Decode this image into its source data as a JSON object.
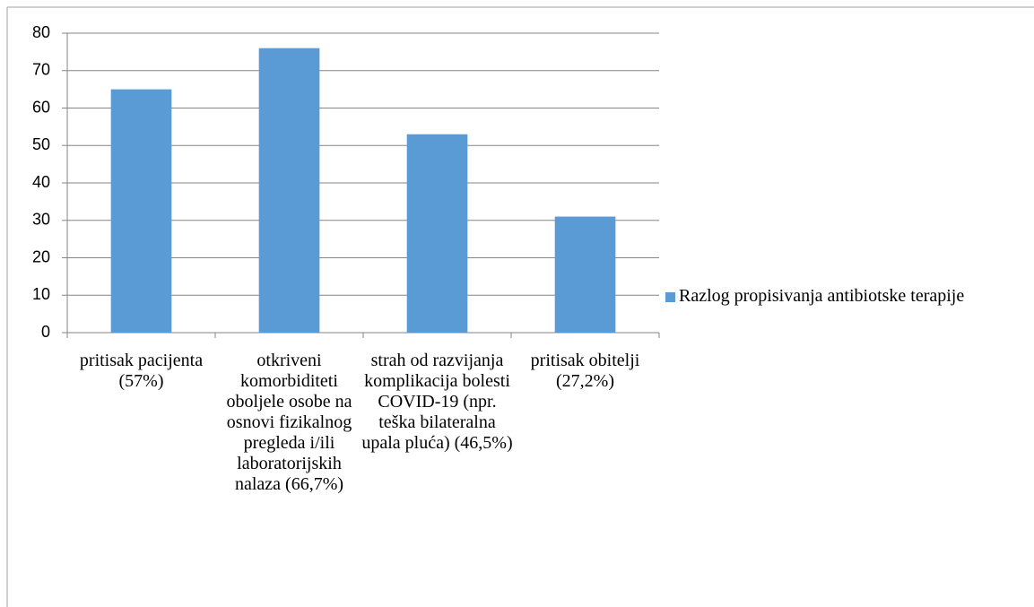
{
  "chart_data": {
    "type": "bar",
    "categories": [
      "pritisak pacijenta (57%)",
      "otkriveni komorbiditeti oboljele osobe na osnovi fizikalnog pregleda i/ili laboratorijskih nalaza (66,7%)",
      "strah od razvijanja komplikacija bolesti COVID-19 (npr. teška bilateralna upala pluća) (46,5%)",
      "pritisak obitelji (27,2%)"
    ],
    "series": [
      {
        "name": "Razlog propisivanja antibiotske terapije",
        "color": "#5b9bd5",
        "values": [
          65,
          76,
          53,
          31
        ]
      }
    ],
    "ylim": [
      0,
      80
    ],
    "yticks": [
      0,
      10,
      20,
      30,
      40,
      50,
      60,
      70,
      80
    ],
    "grid": true,
    "legend": "right"
  }
}
